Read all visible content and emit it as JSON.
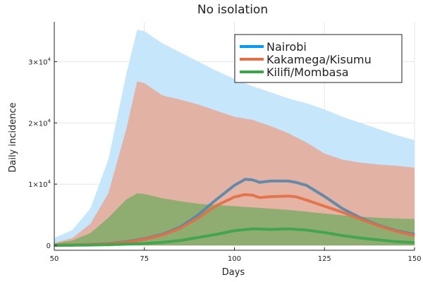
{
  "chart_data": {
    "type": "area",
    "title": "No isolation",
    "xlabel": "Days",
    "ylabel": "Daily incidence",
    "xlim": [
      50,
      150
    ],
    "ylim": [
      -800,
      36500
    ],
    "x_ticks": [
      50,
      75,
      100,
      125,
      150
    ],
    "x_tick_labels": [
      "50",
      "75",
      "100",
      "125",
      "150"
    ],
    "y_ticks": [
      0,
      10000,
      20000,
      30000
    ],
    "y_tick_labels": [
      {
        "base": "0",
        "exp": ""
      },
      {
        "base": "1×10",
        "exp": "4"
      },
      {
        "base": "2×10",
        "exp": "4"
      },
      {
        "base": "3×10",
        "exp": "4"
      }
    ],
    "grid": true,
    "legend_position": "top-right",
    "series": [
      {
        "name": "Nairobi",
        "color": "#009af9",
        "band_color": "#c6e6fb",
        "band_upper": [
          [
            50,
            1200
          ],
          [
            55,
            2500
          ],
          [
            60,
            6000
          ],
          [
            65,
            14000
          ],
          [
            70,
            28000
          ],
          [
            73,
            35200
          ],
          [
            75,
            35000
          ],
          [
            80,
            33000
          ],
          [
            85,
            31500
          ],
          [
            90,
            30000
          ],
          [
            95,
            28500
          ],
          [
            100,
            27200
          ],
          [
            105,
            26000
          ],
          [
            110,
            25000
          ],
          [
            115,
            24000
          ],
          [
            120,
            23200
          ],
          [
            125,
            22200
          ],
          [
            130,
            21000
          ],
          [
            135,
            20000
          ],
          [
            140,
            19000
          ],
          [
            145,
            18000
          ],
          [
            150,
            17200
          ]
        ],
        "values": [
          [
            50,
            0
          ],
          [
            55,
            50
          ],
          [
            60,
            150
          ],
          [
            65,
            300
          ],
          [
            70,
            600
          ],
          [
            75,
            1100
          ],
          [
            80,
            1800
          ],
          [
            85,
            3000
          ],
          [
            90,
            5000
          ],
          [
            95,
            7500
          ],
          [
            100,
            9800
          ],
          [
            103,
            10800
          ],
          [
            105,
            10700
          ],
          [
            107,
            10300
          ],
          [
            110,
            10500
          ],
          [
            115,
            10500
          ],
          [
            117,
            10300
          ],
          [
            120,
            9800
          ],
          [
            125,
            8000
          ],
          [
            130,
            6000
          ],
          [
            135,
            4500
          ],
          [
            140,
            3300
          ],
          [
            145,
            2400
          ],
          [
            150,
            1800
          ]
        ]
      },
      {
        "name": "Kakamega/Kisumu",
        "color": "#e26f46",
        "band_color": "#e4b0a0",
        "band_upper": [
          [
            50,
            400
          ],
          [
            55,
            1200
          ],
          [
            60,
            3500
          ],
          [
            65,
            8500
          ],
          [
            70,
            19000
          ],
          [
            73,
            26800
          ],
          [
            75,
            26500
          ],
          [
            80,
            24500
          ],
          [
            85,
            23800
          ],
          [
            90,
            23000
          ],
          [
            95,
            22000
          ],
          [
            100,
            21000
          ],
          [
            105,
            20500
          ],
          [
            110,
            19500
          ],
          [
            115,
            18300
          ],
          [
            120,
            16800
          ],
          [
            125,
            15000
          ],
          [
            130,
            14000
          ],
          [
            135,
            13500
          ],
          [
            140,
            13200
          ],
          [
            145,
            13000
          ],
          [
            150,
            12700
          ]
        ],
        "band_lower": [
          [
            50,
            0
          ],
          [
            150,
            0
          ]
        ],
        "values": [
          [
            50,
            0
          ],
          [
            55,
            50
          ],
          [
            60,
            120
          ],
          [
            65,
            250
          ],
          [
            70,
            500
          ],
          [
            75,
            1000
          ],
          [
            80,
            1700
          ],
          [
            85,
            2800
          ],
          [
            90,
            4500
          ],
          [
            95,
            6500
          ],
          [
            100,
            7900
          ],
          [
            103,
            8300
          ],
          [
            105,
            8200
          ],
          [
            107,
            7800
          ],
          [
            110,
            7950
          ],
          [
            115,
            8050
          ],
          [
            117,
            7950
          ],
          [
            120,
            7400
          ],
          [
            125,
            6400
          ],
          [
            130,
            5400
          ],
          [
            135,
            4300
          ],
          [
            140,
            3200
          ],
          [
            145,
            2300
          ],
          [
            150,
            1600
          ]
        ]
      },
      {
        "name": "Kilifi/Mombasa",
        "color": "#3da44d",
        "band_color": "#8aac6e",
        "band_upper": [
          [
            50,
            300
          ],
          [
            55,
            800
          ],
          [
            60,
            2000
          ],
          [
            65,
            4500
          ],
          [
            70,
            7500
          ],
          [
            73,
            8500
          ],
          [
            75,
            8400
          ],
          [
            80,
            7700
          ],
          [
            85,
            7200
          ],
          [
            90,
            6800
          ],
          [
            95,
            6600
          ],
          [
            100,
            6400
          ],
          [
            105,
            6200
          ],
          [
            110,
            6000
          ],
          [
            115,
            5800
          ],
          [
            120,
            5500
          ],
          [
            125,
            5200
          ],
          [
            130,
            4900
          ],
          [
            135,
            4700
          ],
          [
            140,
            4500
          ],
          [
            145,
            4400
          ],
          [
            150,
            4300
          ]
        ],
        "band_lower": [
          [
            50,
            0
          ],
          [
            150,
            0
          ]
        ],
        "values": [
          [
            50,
            0
          ],
          [
            55,
            20
          ],
          [
            60,
            50
          ],
          [
            65,
            100
          ],
          [
            70,
            200
          ],
          [
            75,
            300
          ],
          [
            80,
            500
          ],
          [
            85,
            800
          ],
          [
            90,
            1300
          ],
          [
            95,
            1800
          ],
          [
            100,
            2400
          ],
          [
            105,
            2700
          ],
          [
            110,
            2600
          ],
          [
            115,
            2700
          ],
          [
            120,
            2500
          ],
          [
            125,
            2100
          ],
          [
            130,
            1600
          ],
          [
            135,
            1200
          ],
          [
            140,
            900
          ],
          [
            145,
            600
          ],
          [
            150,
            450
          ]
        ]
      }
    ]
  }
}
